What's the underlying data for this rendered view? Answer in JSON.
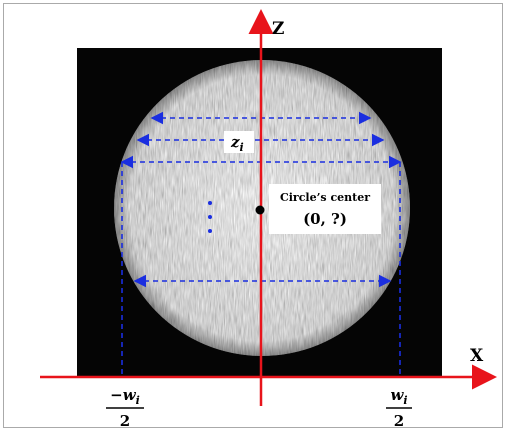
{
  "axes": {
    "vertical_label": "z",
    "horizontal_label": "x"
  },
  "width_label": {
    "symbol": "z",
    "subscript": "i"
  },
  "center_box": {
    "title": "Circle’s center",
    "coordinate": "(0, ?)"
  },
  "left_mark": {
    "numerator": "−w",
    "subscript": "i",
    "denominator": "2"
  },
  "right_mark": {
    "numerator": "w",
    "subscript": "i",
    "denominator": "2"
  }
}
